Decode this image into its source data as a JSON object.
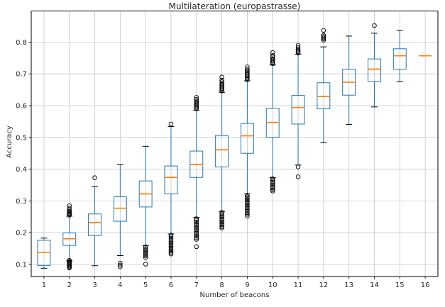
{
  "figure": {
    "title": "Multilateration (europastrasse)"
  },
  "chart_data": {
    "type": "boxplot",
    "title": "Multilateration (europastrasse)",
    "xlabel": "Number of beacons",
    "ylabel": "Accuracy",
    "categories": [
      "1",
      "2",
      "3",
      "4",
      "5",
      "6",
      "7",
      "8",
      "9",
      "10",
      "11",
      "12",
      "13",
      "14",
      "15",
      "16"
    ],
    "yticks": [
      0.1,
      0.2,
      0.3,
      0.4,
      0.5,
      0.6,
      0.7,
      0.8
    ],
    "xlim": [
      0.5,
      16.5
    ],
    "ylim": [
      0.062,
      0.898
    ],
    "grid": true,
    "legend": false,
    "colors": {
      "box": "#1f77b4",
      "whisker": "#1f77b4",
      "median": "#ff7f0e",
      "cap": "#000000",
      "flier": "#000000",
      "grid": "#c8c8c8",
      "spine": "#000000",
      "background": "#ffffff"
    },
    "boxes": [
      {
        "label": "1",
        "whislo": 0.088,
        "q1": 0.097,
        "med": 0.138,
        "q3": 0.176,
        "whishi": 0.183,
        "fliers": []
      },
      {
        "label": "2",
        "whislo": 0.111,
        "q1": 0.16,
        "med": 0.181,
        "q3": 0.199,
        "whishi": 0.252,
        "fliers": [
          0.255,
          0.258,
          0.261,
          0.264,
          0.267,
          0.271,
          0.277,
          0.285,
          0.113,
          0.11,
          0.107,
          0.104,
          0.101,
          0.098,
          0.095,
          0.092,
          0.089
        ]
      },
      {
        "label": "3",
        "whislo": 0.096,
        "q1": 0.191,
        "med": 0.232,
        "q3": 0.259,
        "whishi": 0.345,
        "fliers": [
          0.373
        ]
      },
      {
        "label": "4",
        "whislo": 0.128,
        "q1": 0.236,
        "med": 0.277,
        "q3": 0.313,
        "whishi": 0.414,
        "fliers": [
          0.104,
          0.098,
          0.093
        ]
      },
      {
        "label": "5",
        "whislo": 0.159,
        "q1": 0.281,
        "med": 0.322,
        "q3": 0.363,
        "whishi": 0.472,
        "fliers": [
          0.155,
          0.15,
          0.146,
          0.141,
          0.136,
          0.131,
          0.127,
          0.122,
          0.101
        ]
      },
      {
        "label": "6",
        "whislo": 0.196,
        "q1": 0.322,
        "med": 0.374,
        "q3": 0.41,
        "whishi": 0.534,
        "fliers": [
          0.542,
          0.192,
          0.187,
          0.182,
          0.177,
          0.172,
          0.167,
          0.162,
          0.157,
          0.152,
          0.147,
          0.142,
          0.137,
          0.133
        ]
      },
      {
        "label": "7",
        "whislo": 0.248,
        "q1": 0.374,
        "med": 0.415,
        "q3": 0.457,
        "whishi": 0.585,
        "fliers": [
          0.59,
          0.594,
          0.598,
          0.602,
          0.607,
          0.611,
          0.615,
          0.62,
          0.626,
          0.244,
          0.239,
          0.234,
          0.229,
          0.224,
          0.219,
          0.214,
          0.209,
          0.204,
          0.199,
          0.194,
          0.189,
          0.184,
          0.179,
          0.156
        ]
      },
      {
        "label": "8",
        "whislo": 0.267,
        "q1": 0.407,
        "med": 0.461,
        "q3": 0.506,
        "whishi": 0.642,
        "fliers": [
          0.646,
          0.65,
          0.654,
          0.658,
          0.662,
          0.666,
          0.67,
          0.675,
          0.68,
          0.69,
          0.264,
          0.259,
          0.254,
          0.249,
          0.244,
          0.239,
          0.234,
          0.229,
          0.224,
          0.219,
          0.215
        ]
      },
      {
        "label": "9",
        "whislo": 0.322,
        "q1": 0.45,
        "med": 0.505,
        "q3": 0.544,
        "whishi": 0.678,
        "fliers": [
          0.682,
          0.686,
          0.69,
          0.694,
          0.698,
          0.702,
          0.706,
          0.71,
          0.715,
          0.722,
          0.318,
          0.313,
          0.308,
          0.303,
          0.298,
          0.293,
          0.288,
          0.283,
          0.278,
          0.273,
          0.268,
          0.263,
          0.258,
          0.252
        ]
      },
      {
        "label": "10",
        "whislo": 0.373,
        "q1": 0.5,
        "med": 0.547,
        "q3": 0.592,
        "whishi": 0.728,
        "fliers": [
          0.732,
          0.736,
          0.74,
          0.744,
          0.748,
          0.753,
          0.758,
          0.767,
          0.37,
          0.365,
          0.36,
          0.355,
          0.35,
          0.345,
          0.34,
          0.335,
          0.331
        ]
      },
      {
        "label": "11",
        "whislo": 0.413,
        "q1": 0.542,
        "med": 0.594,
        "q3": 0.632,
        "whishi": 0.762,
        "fliers": [
          0.766,
          0.77,
          0.774,
          0.778,
          0.783,
          0.79,
          0.407,
          0.376
        ]
      },
      {
        "label": "12",
        "whislo": 0.484,
        "q1": 0.59,
        "med": 0.629,
        "q3": 0.672,
        "whishi": 0.785,
        "fliers": [
          0.806,
          0.81,
          0.814,
          0.818,
          0.822,
          0.837
        ]
      },
      {
        "label": "13",
        "whislo": 0.541,
        "q1": 0.633,
        "med": 0.674,
        "q3": 0.715,
        "whishi": 0.819,
        "fliers": []
      },
      {
        "label": "14",
        "whislo": 0.596,
        "q1": 0.676,
        "med": 0.715,
        "q3": 0.747,
        "whishi": 0.828,
        "fliers": [
          0.852
        ]
      },
      {
        "label": "15",
        "whislo": 0.676,
        "q1": 0.715,
        "med": 0.757,
        "q3": 0.779,
        "whishi": 0.837,
        "fliers": []
      },
      {
        "label": "16",
        "whislo": 0.757,
        "q1": 0.757,
        "med": 0.757,
        "q3": 0.757,
        "whishi": 0.757,
        "fliers": []
      }
    ]
  }
}
